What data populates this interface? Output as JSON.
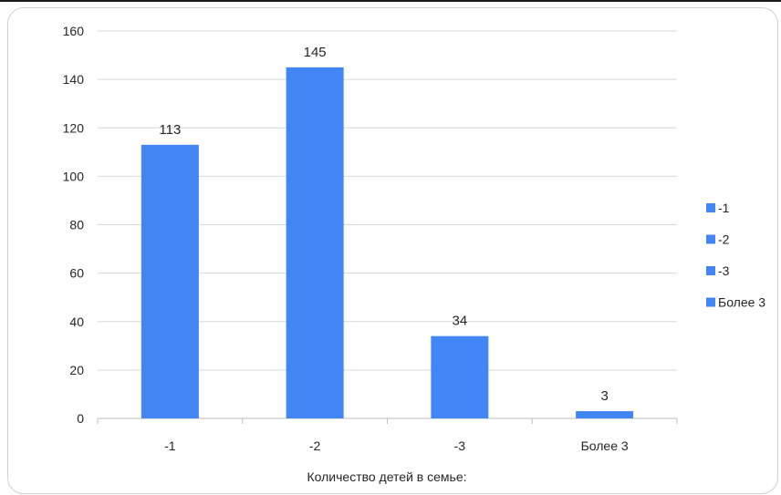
{
  "chart_data": {
    "type": "bar",
    "categories": [
      "-1",
      "-2",
      "-3",
      "Более 3"
    ],
    "values": [
      113,
      145,
      34,
      3
    ],
    "data_labels": [
      "113",
      "145",
      "34",
      "3"
    ],
    "title": "",
    "xlabel": "Количество детей в семье:",
    "ylabel": "",
    "ylim": [
      0,
      160
    ],
    "yticks": [
      0,
      20,
      40,
      60,
      80,
      100,
      120,
      140,
      160
    ],
    "grid": true,
    "bar_color": "#4285f4",
    "legend": {
      "position": "right",
      "entries": [
        "-1",
        "-2",
        "-3",
        "Более 3"
      ]
    }
  }
}
